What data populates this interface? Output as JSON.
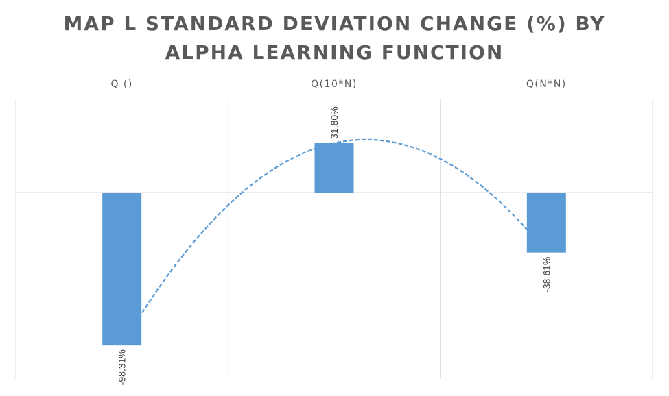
{
  "chart_data": {
    "type": "bar",
    "title_lines": [
      "MAP L STANDARD DEVIATION CHANGE (%) BY",
      "ALPHA LEARNING FUNCTION"
    ],
    "categories": [
      "Q ()",
      "Q(10*N)",
      "Q(N*N)"
    ],
    "values": [
      -98.31,
      31.8,
      -38.61
    ],
    "data_labels": [
      "-98.31%",
      "31.80%",
      "-38.61%"
    ],
    "unit": "%",
    "trendline": "polynomial",
    "grid": true,
    "bar_color": "#5B9BD5",
    "trend_color": "#5B9BD5",
    "gridline_color": "#D9D9D9"
  }
}
